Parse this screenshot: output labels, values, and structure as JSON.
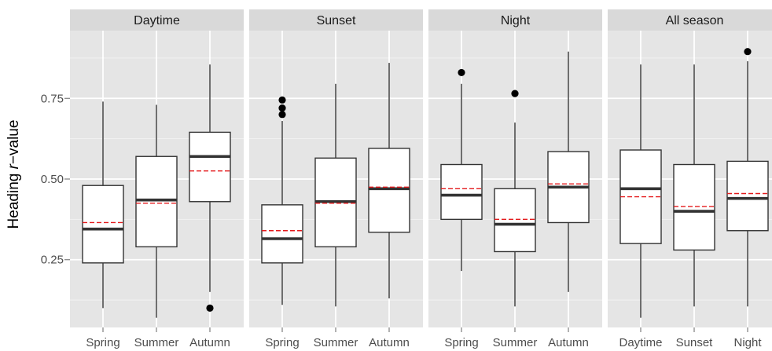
{
  "chart_data": {
    "type": "box",
    "ylabel_parts": [
      "Heading ",
      "r",
      "−value"
    ],
    "y_ticks": [
      "0.25",
      "0.50",
      "0.75"
    ],
    "ylim": [
      0.04,
      0.96
    ],
    "grid": true,
    "panels": [
      {
        "title": "Daytime",
        "categories": [
          "Spring",
          "Summer",
          "Autumn"
        ],
        "boxes": [
          {
            "min": 0.1,
            "q1": 0.24,
            "median": 0.345,
            "mean": 0.365,
            "q3": 0.48,
            "max": 0.74,
            "outliers": []
          },
          {
            "min": 0.07,
            "q1": 0.29,
            "median": 0.435,
            "mean": 0.425,
            "q3": 0.57,
            "max": 0.73,
            "outliers": []
          },
          {
            "min": 0.15,
            "q1": 0.43,
            "median": 0.57,
            "mean": 0.525,
            "q3": 0.645,
            "max": 0.855,
            "outliers": [
              0.1
            ]
          }
        ]
      },
      {
        "title": "Sunset",
        "categories": [
          "Spring",
          "Summer",
          "Autumn"
        ],
        "boxes": [
          {
            "min": 0.11,
            "q1": 0.24,
            "median": 0.315,
            "mean": 0.34,
            "q3": 0.42,
            "max": 0.68,
            "outliers": [
              0.7,
              0.72,
              0.745
            ]
          },
          {
            "min": 0.105,
            "q1": 0.29,
            "median": 0.43,
            "mean": 0.425,
            "q3": 0.565,
            "max": 0.795,
            "outliers": []
          },
          {
            "min": 0.13,
            "q1": 0.335,
            "median": 0.47,
            "mean": 0.475,
            "q3": 0.595,
            "max": 0.86,
            "outliers": []
          }
        ]
      },
      {
        "title": "Night",
        "categories": [
          "Spring",
          "Summer",
          "Autumn"
        ],
        "boxes": [
          {
            "min": 0.215,
            "q1": 0.375,
            "median": 0.45,
            "mean": 0.47,
            "q3": 0.545,
            "max": 0.795,
            "outliers": [
              0.83
            ]
          },
          {
            "min": 0.105,
            "q1": 0.275,
            "median": 0.36,
            "mean": 0.375,
            "q3": 0.47,
            "max": 0.675,
            "outliers": [
              0.765
            ]
          },
          {
            "min": 0.15,
            "q1": 0.365,
            "median": 0.475,
            "mean": 0.485,
            "q3": 0.585,
            "max": 0.895,
            "outliers": []
          }
        ]
      },
      {
        "title": "All season",
        "categories": [
          "Daytime",
          "Sunset",
          "Night"
        ],
        "boxes": [
          {
            "min": 0.07,
            "q1": 0.3,
            "median": 0.47,
            "mean": 0.445,
            "q3": 0.59,
            "max": 0.855,
            "outliers": []
          },
          {
            "min": 0.105,
            "q1": 0.28,
            "median": 0.4,
            "mean": 0.415,
            "q3": 0.545,
            "max": 0.855,
            "outliers": []
          },
          {
            "min": 0.105,
            "q1": 0.34,
            "median": 0.44,
            "mean": 0.455,
            "q3": 0.555,
            "max": 0.865,
            "outliers": [
              0.895
            ]
          }
        ]
      }
    ]
  }
}
